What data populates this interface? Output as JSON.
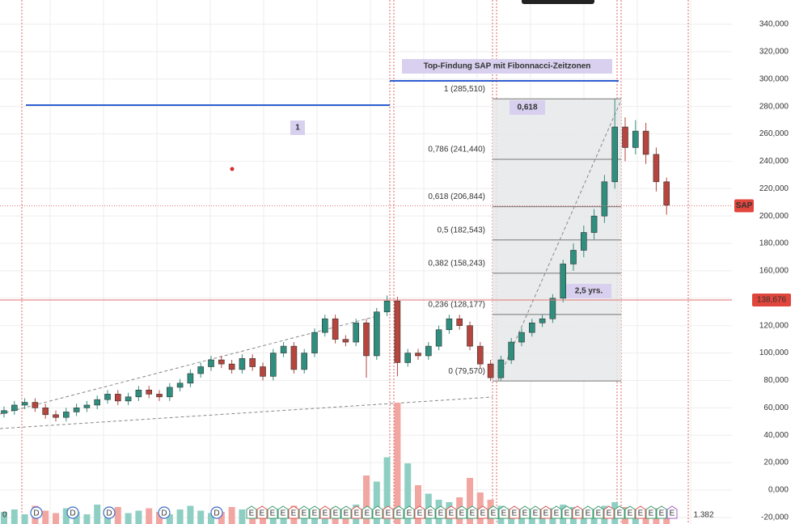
{
  "chart_data": {
    "type": "candlestick",
    "title": "Top-Findung SAP mit Fibonnacci-Zeitzonen",
    "symbol_label": "SAP",
    "ylim": [
      -24800,
      357700
    ],
    "yticks": [
      {
        "value": -20000,
        "label": "-20,000"
      },
      {
        "value": 0,
        "label": "0,000"
      },
      {
        "value": 20000,
        "label": "20,000"
      },
      {
        "value": 40000,
        "label": "40,000"
      },
      {
        "value": 60000,
        "label": "60,000"
      },
      {
        "value": 80000,
        "label": "80,000"
      },
      {
        "value": 100000,
        "label": "100,000"
      },
      {
        "value": 120000,
        "label": "120,000"
      },
      {
        "value": 140000,
        "label": "140,000"
      },
      {
        "value": 160000,
        "label": "160,000"
      },
      {
        "value": 180000,
        "label": "180,000"
      },
      {
        "value": 200000,
        "label": "200,000"
      },
      {
        "value": 220000,
        "label": "220,000"
      },
      {
        "value": 240000,
        "label": "240,000"
      },
      {
        "value": 260000,
        "label": "260,000"
      },
      {
        "value": 280000,
        "label": "280,000"
      },
      {
        "value": 300000,
        "label": "300,000"
      },
      {
        "value": 320000,
        "label": "320,000"
      },
      {
        "value": 340000,
        "label": "340,000"
      }
    ],
    "up_color": "#2f8f7f",
    "down_color": "#b5453d",
    "ohlc": [
      [
        56000,
        61000,
        53000,
        58000
      ],
      [
        58000,
        65000,
        55000,
        62000
      ],
      [
        62000,
        67000,
        59000,
        64000
      ],
      [
        64000,
        67000,
        57000,
        60000
      ],
      [
        60000,
        63000,
        52000,
        55000
      ],
      [
        55000,
        58000,
        50000,
        53000
      ],
      [
        53000,
        60000,
        50000,
        57000
      ],
      [
        57000,
        63000,
        54000,
        60000
      ],
      [
        60000,
        65000,
        57000,
        62000
      ],
      [
        62000,
        69000,
        59000,
        66000
      ],
      [
        66000,
        73000,
        63000,
        70000
      ],
      [
        70000,
        73000,
        62000,
        65000
      ],
      [
        65000,
        71000,
        62000,
        68000
      ],
      [
        68000,
        76000,
        65000,
        73000
      ],
      [
        73000,
        76000,
        67000,
        70000
      ],
      [
        70000,
        73000,
        65000,
        68000
      ],
      [
        68000,
        78000,
        65000,
        75000
      ],
      [
        75000,
        81000,
        72000,
        78000
      ],
      [
        78000,
        88000,
        75000,
        85000
      ],
      [
        85000,
        93000,
        82000,
        90000
      ],
      [
        90000,
        98000,
        87000,
        95000
      ],
      [
        95000,
        98000,
        89000,
        92000
      ],
      [
        92000,
        95000,
        85000,
        88000
      ],
      [
        88000,
        99000,
        85000,
        96000
      ],
      [
        96000,
        99000,
        87000,
        90000
      ],
      [
        90000,
        93000,
        80000,
        83000
      ],
      [
        83000,
        103000,
        80000,
        100000
      ],
      [
        100000,
        108000,
        97000,
        105000
      ],
      [
        105000,
        108000,
        85000,
        88000
      ],
      [
        88000,
        103000,
        85000,
        100000
      ],
      [
        100000,
        118000,
        97000,
        115000
      ],
      [
        115000,
        128000,
        112000,
        125000
      ],
      [
        125000,
        128000,
        107000,
        110000
      ],
      [
        110000,
        113000,
        105000,
        108000
      ],
      [
        108000,
        125000,
        105000,
        122000
      ],
      [
        122000,
        125000,
        82000,
        98000
      ],
      [
        98000,
        133000,
        95000,
        130000
      ],
      [
        130000,
        142000,
        127000,
        138000
      ],
      [
        138000,
        141000,
        83000,
        93000
      ],
      [
        93000,
        103000,
        90000,
        100000
      ],
      [
        100000,
        103000,
        95000,
        98000
      ],
      [
        98000,
        108000,
        95000,
        105000
      ],
      [
        105000,
        120000,
        102000,
        117000
      ],
      [
        117000,
        128000,
        114000,
        125000
      ],
      [
        125000,
        128000,
        117000,
        120000
      ],
      [
        120000,
        123000,
        102000,
        105000
      ],
      [
        105000,
        108000,
        89000,
        92000
      ],
      [
        92000,
        95000,
        79570,
        82000
      ],
      [
        82000,
        98000,
        80000,
        95000
      ],
      [
        95000,
        111000,
        92000,
        108000
      ],
      [
        108000,
        118000,
        105000,
        115000
      ],
      [
        115000,
        125000,
        112000,
        122000
      ],
      [
        122000,
        128000,
        119000,
        125000
      ],
      [
        125000,
        143000,
        122000,
        140000
      ],
      [
        140000,
        168000,
        137000,
        165000
      ],
      [
        165000,
        180000,
        160000,
        175000
      ],
      [
        175000,
        193000,
        170000,
        188000
      ],
      [
        188000,
        205000,
        183000,
        200000
      ],
      [
        200000,
        230000,
        195000,
        225000
      ],
      [
        225000,
        285510,
        220000,
        265000
      ],
      [
        265000,
        272000,
        240000,
        250000
      ],
      [
        250000,
        270000,
        245000,
        262000
      ],
      [
        262000,
        268000,
        238000,
        245000
      ],
      [
        245000,
        250000,
        218000,
        225000
      ],
      [
        225000,
        228000,
        201000,
        208000
      ]
    ],
    "volume": [
      1.0,
      1.2,
      0.8,
      1.5,
      1.1,
      0.9,
      1.3,
      1.0,
      0.8,
      1.6,
      1.2,
      1.4,
      0.9,
      1.1,
      1.3,
      1.0,
      0.8,
      1.2,
      1.5,
      1.1,
      0.9,
      1.0,
      1.4,
      1.2,
      1.0,
      1.3,
      1.1,
      0.9,
      1.5,
      1.2,
      1.0,
      1.3,
      1.4,
      1.1,
      1.6,
      4.0,
      3.5,
      5.5,
      10.0,
      5.0,
      3.2,
      2.5,
      2.0,
      1.8,
      2.2,
      3.8,
      2.6,
      2.0,
      1.5,
      1.2,
      1.0,
      0.9,
      1.1,
      1.3,
      1.6,
      1.4,
      1.2,
      1.0,
      1.5,
      1.8,
      1.4,
      1.2,
      1.0,
      1.3,
      0.9
    ],
    "fib_levels": [
      {
        "value": 285510,
        "label": "1 (285,510)"
      },
      {
        "value": 241440,
        "label": "0,786 (241,440)"
      },
      {
        "value": 206844,
        "label": "0,618 (206,844)"
      },
      {
        "value": 182543,
        "label": "0,5 (182,543)"
      },
      {
        "value": 158243,
        "label": "0,382 (158,243)"
      },
      {
        "value": 128177,
        "label": "0,236 (128,177)"
      },
      {
        "value": 79570,
        "label": "0 (79,570)"
      }
    ],
    "horizontal_line": {
      "value": 138676,
      "label": "138,676"
    },
    "last_price": 207500,
    "blue_lines": [
      281000,
      298700
    ],
    "annotations": [
      "1",
      "0,618",
      "2,5 yrs."
    ],
    "time_zone_labels": [
      "0",
      "1.382"
    ],
    "dividend_markers": [
      "D",
      "D",
      "D",
      "D",
      "D"
    ],
    "earnings_markers": [
      "E",
      "E",
      "E",
      "E",
      "E",
      "E",
      "E",
      "E",
      "E",
      "E",
      "E",
      "E",
      "E",
      "E",
      "E",
      "E",
      "E",
      "E",
      "E",
      "E",
      "E",
      "E",
      "E",
      "E",
      "E",
      "E",
      "E",
      "E",
      "E",
      "E",
      "E",
      "E",
      "E",
      "E",
      "E",
      "E",
      "E",
      "E",
      "E",
      "E",
      "E"
    ]
  }
}
